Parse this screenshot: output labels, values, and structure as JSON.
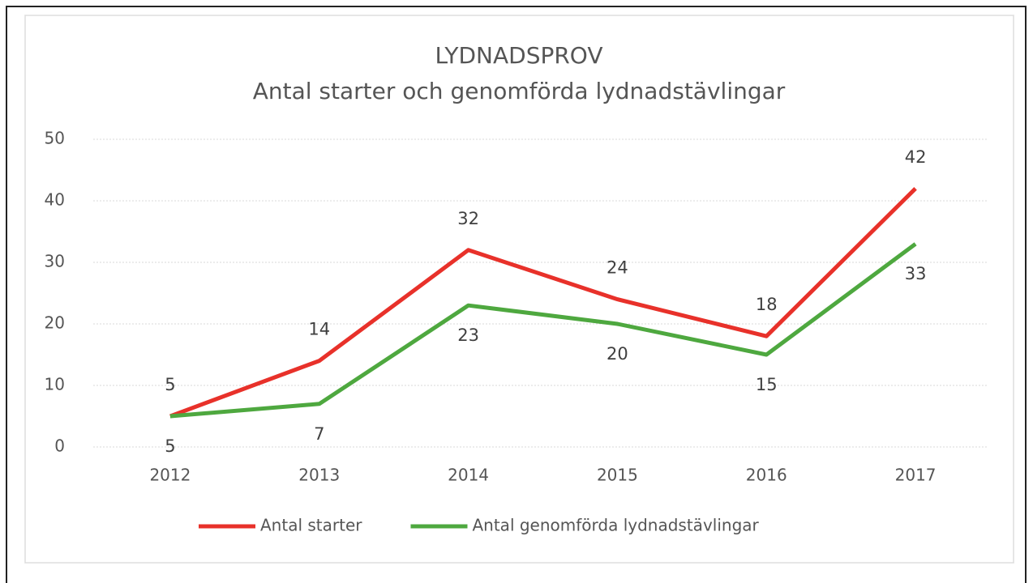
{
  "chart_data": {
    "type": "line",
    "title": "LYDNADSPROV",
    "subtitle": "Antal starter och genomförda lydnadstävlingar",
    "categories": [
      "2012",
      "2013",
      "2014",
      "2015",
      "2016",
      "2017"
    ],
    "series": [
      {
        "name": "Antal starter",
        "color": "#e8312a",
        "values": [
          5,
          14,
          32,
          24,
          18,
          42
        ]
      },
      {
        "name": "Antal genomförda lydnadstävlingar",
        "color": "#4ea83f",
        "values": [
          5,
          7,
          23,
          20,
          15,
          33
        ]
      }
    ],
    "ylim": [
      0,
      50
    ],
    "yticks": [
      0,
      10,
      20,
      30,
      40,
      50
    ],
    "grid": true,
    "legend": "bottom"
  }
}
